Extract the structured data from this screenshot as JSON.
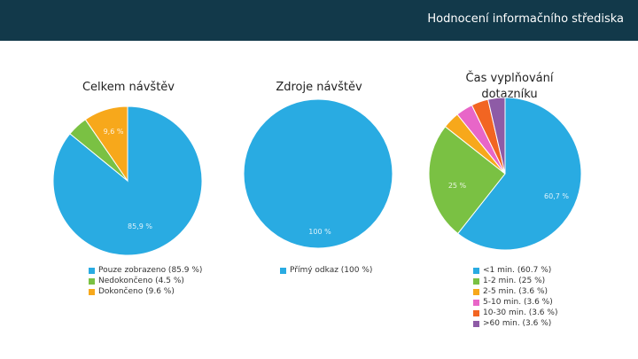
{
  "header": {
    "title": "Hodnocení informačního střediska"
  },
  "chart_data": [
    {
      "type": "pie",
      "title": "Celkem návštěv",
      "slices": [
        {
          "label": "Pouze zobrazeno (85.9 %)",
          "value": 85.9,
          "data_label": "85,9 %",
          "color": "#29abe2"
        },
        {
          "label": "Nedokončeno (4.5 %)",
          "value": 4.5,
          "data_label": "",
          "color": "#7ac143"
        },
        {
          "label": "Dokončeno (9.6 %)",
          "value": 9.6,
          "data_label": "9,6 %",
          "color": "#f7a81b"
        }
      ]
    },
    {
      "type": "pie",
      "title": "Zdroje návštěv",
      "slices": [
        {
          "label": "Přímý odkaz (100 %)",
          "value": 100,
          "data_label": "100 %",
          "color": "#29abe2"
        }
      ]
    },
    {
      "type": "pie",
      "title": "Čas vyplňování dotazníku",
      "slices": [
        {
          "label": "<1 min. (60.7 %)",
          "value": 60.7,
          "data_label": "60,7 %",
          "color": "#29abe2"
        },
        {
          "label": "1-2 min. (25 %)",
          "value": 25,
          "data_label": "25 %",
          "color": "#7ac143"
        },
        {
          "label": "2-5 min. (3.6 %)",
          "value": 3.6,
          "data_label": "",
          "color": "#f7a81b"
        },
        {
          "label": "5-10 min. (3.6 %)",
          "value": 3.6,
          "data_label": "",
          "color": "#e866c8"
        },
        {
          "label": "10-30 min. (3.6 %)",
          "value": 3.6,
          "data_label": "",
          "color": "#f26522"
        },
        {
          "label": ">60 min. (3.6 %)",
          "value": 3.6,
          "data_label": "",
          "color": "#8e5ba6"
        }
      ]
    }
  ]
}
